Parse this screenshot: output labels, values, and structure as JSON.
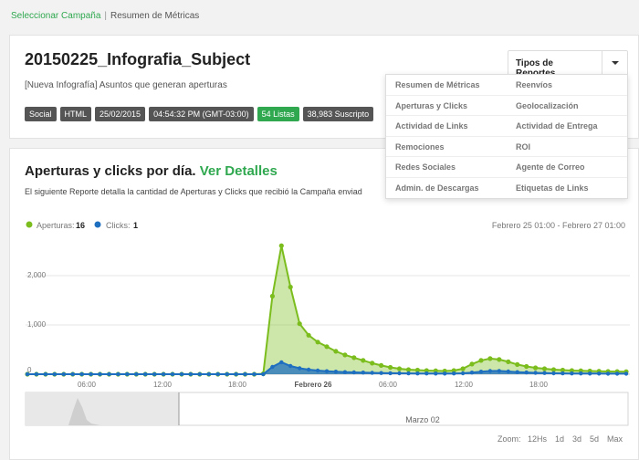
{
  "breadcrumb": {
    "link": "Seleccionar Campaña",
    "separator": "|",
    "current": "Resumen de Métricas"
  },
  "campaign": {
    "title": "20150225_Infografia_Subject",
    "subtitle": "[Nueva Infografía] Asuntos que generan aperturas",
    "badges": [
      {
        "label": "Social",
        "color": "#555555"
      },
      {
        "label": "HTML",
        "color": "#555555"
      },
      {
        "label": "25/02/2015",
        "color": "#555555"
      },
      {
        "label": "04:54:32 PM (GMT-03:00)",
        "color": "#555555"
      },
      {
        "label": "54 Listas",
        "color": "#2fa84f"
      },
      {
        "label": "38,983 Suscripto",
        "color": "#555555"
      }
    ]
  },
  "reports_button": {
    "label": "Tipos de Reportes"
  },
  "reports_menu": {
    "left": [
      "Resumen de Métricas",
      "Aperturas y Clicks",
      "Actividad de Links",
      "Remociones",
      "Redes Sociales",
      "Admin. de Descargas"
    ],
    "right": [
      "Reenvíos",
      "Geolocalización",
      "Actividad de Entrega",
      "ROI",
      "Agente de Correo",
      "Etiquetas de Links"
    ]
  },
  "chart_section": {
    "title": "Aperturas y clicks por día.",
    "details_link": "Ver Detalles",
    "description": "El siguiente Reporte detalla la cantidad de Aperturas y Clicks que recibió la Campaña enviad"
  },
  "legend": {
    "aperturas_label": "Aperturas:",
    "aperturas_value": "16",
    "clicks_label": "Clicks:",
    "clicks_value": "1",
    "date_range": "Febrero 25 01:00 - Febrero 27 01:00"
  },
  "zoom": {
    "label": "Zoom:",
    "options": [
      "12Hs",
      "1d",
      "3d",
      "5d",
      "Max"
    ]
  },
  "navigator": {
    "label": "Marzo 02"
  },
  "colors": {
    "accent": "#2fa84f",
    "aperturas": "#7cbd1e",
    "clicks": "#1f6fc0"
  },
  "chart_data": {
    "type": "area",
    "xlabels": [
      "06:00",
      "12:00",
      "18:00",
      "Febrero 26",
      "06:00",
      "12:00",
      "18:00"
    ],
    "ylabels": [
      "0",
      "1,000",
      "2,000"
    ],
    "ylim": [
      0,
      2900
    ],
    "series": [
      {
        "name": "Aperturas",
        "color": "#7cbd1e",
        "values": [
          0,
          0,
          0,
          0,
          0,
          0,
          0,
          0,
          0,
          0,
          0,
          0,
          0,
          0,
          0,
          0,
          0,
          0,
          0,
          0,
          0,
          0,
          0,
          0,
          0,
          0,
          10,
          1700,
          2800,
          1900,
          1100,
          850,
          700,
          600,
          500,
          420,
          360,
          300,
          240,
          190,
          150,
          120,
          100,
          90,
          80,
          75,
          70,
          80,
          120,
          220,
          300,
          340,
          320,
          270,
          210,
          170,
          140,
          120,
          100,
          90,
          80,
          75,
          70,
          65,
          60,
          58,
          55
        ]
      },
      {
        "name": "Clicks",
        "color": "#1f6fc0",
        "values": [
          0,
          0,
          0,
          0,
          0,
          0,
          0,
          0,
          0,
          0,
          0,
          0,
          0,
          0,
          0,
          0,
          0,
          0,
          0,
          0,
          0,
          0,
          0,
          0,
          0,
          0,
          0,
          160,
          260,
          180,
          130,
          100,
          80,
          65,
          55,
          45,
          40,
          35,
          30,
          25,
          22,
          20,
          18,
          16,
          15,
          14,
          13,
          15,
          20,
          35,
          55,
          70,
          72,
          60,
          45,
          38,
          30,
          25,
          20,
          18,
          16,
          15,
          14,
          13,
          12,
          12,
          11
        ]
      }
    ]
  }
}
